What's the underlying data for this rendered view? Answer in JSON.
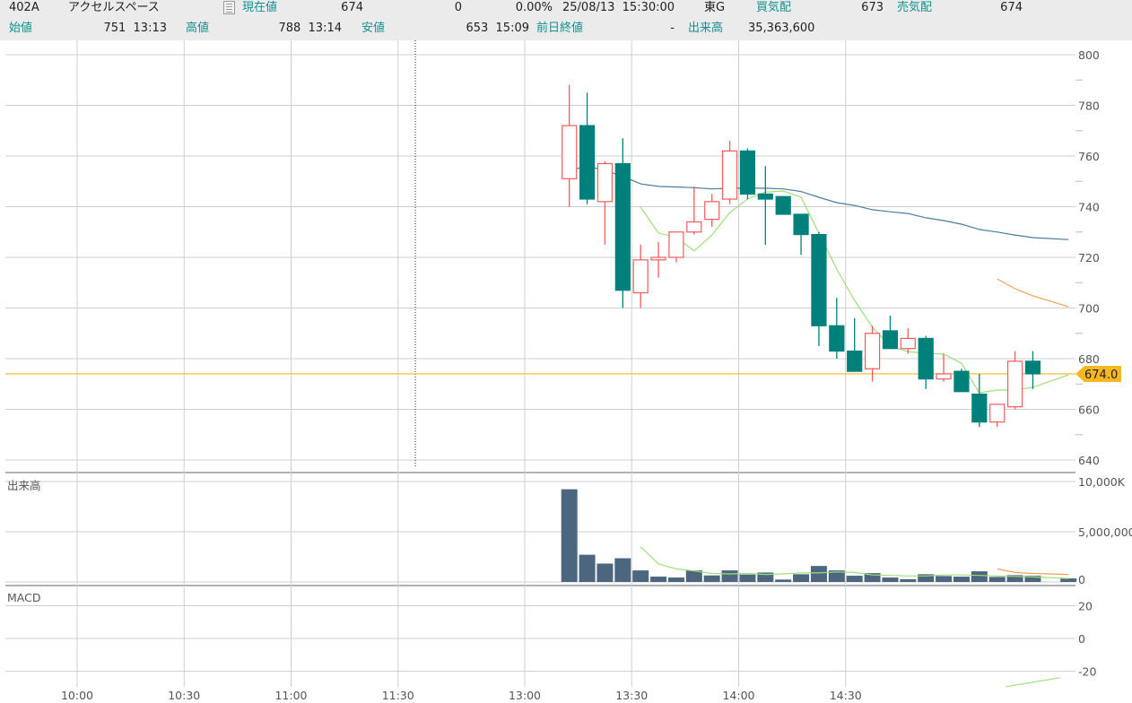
{
  "header": {
    "code": "402A",
    "name": "アクセルスペース",
    "memo_icon": "document-icon",
    "current_label": "現在値",
    "current_value": "674",
    "change": "0",
    "change_pct": "0.00%",
    "datetime": "25/08/13  15:30:00",
    "market": "東G",
    "bid_label": "買気配",
    "bid_value": "673",
    "ask_label": "売気配",
    "ask_value": "674",
    "open_label": "始値",
    "open_value": "751  13:13",
    "high_label": "高値",
    "high_value": "788  13:14",
    "low_label": "安値",
    "low_value": "653  15:09",
    "prev_close_label": "前日終値",
    "prev_close_value": "-",
    "volume_label": "出来高",
    "volume_value": "35,363,600"
  },
  "panels": {
    "volume_title": "出来高",
    "macd_title": "MACD"
  },
  "colors": {
    "up": "#f25c5c",
    "down": "#00807a",
    "ma_short": "#9ee07a",
    "ma_long": "#4a7fa0",
    "ma_orange": "#f5a050",
    "volume": "#4d6680",
    "last_price": "#f5b820"
  },
  "chart_data": {
    "type": "candlestick",
    "interval_minutes": 5,
    "x_ticks": [
      "10:00",
      "10:30",
      "11:00",
      "11:30",
      "13:00",
      "13:30",
      "14:00",
      "14:30"
    ],
    "price_axis": {
      "ticks": [
        "800",
        "780",
        "760",
        "740",
        "720",
        "700",
        "680",
        "660",
        "640"
      ],
      "range": [
        640,
        800
      ]
    },
    "last_price": 674.0,
    "last_price_label": "674.0",
    "candles": [
      {
        "t": "13:10",
        "o": 751,
        "h": 788,
        "l": 740,
        "c": 772
      },
      {
        "t": "13:15",
        "o": 772,
        "h": 785,
        "l": 741,
        "c": 743
      },
      {
        "t": "13:20",
        "o": 742,
        "h": 758,
        "l": 725,
        "c": 757
      },
      {
        "t": "13:25",
        "o": 757,
        "h": 767,
        "l": 700,
        "c": 707
      },
      {
        "t": "13:30",
        "o": 706,
        "h": 725,
        "l": 700,
        "c": 719
      },
      {
        "t": "13:35",
        "o": 719,
        "h": 726,
        "l": 712,
        "c": 720
      },
      {
        "t": "13:40",
        "o": 720,
        "h": 730,
        "l": 718,
        "c": 730
      },
      {
        "t": "13:45",
        "o": 730,
        "h": 748,
        "l": 729,
        "c": 734
      },
      {
        "t": "13:50",
        "o": 735,
        "h": 745,
        "l": 732,
        "c": 742
      },
      {
        "t": "13:55",
        "o": 743,
        "h": 766,
        "l": 741,
        "c": 762
      },
      {
        "t": "14:00",
        "o": 762,
        "h": 763,
        "l": 743,
        "c": 745
      },
      {
        "t": "14:05",
        "o": 745,
        "h": 756,
        "l": 725,
        "c": 743
      },
      {
        "t": "14:10",
        "o": 744,
        "h": 744,
        "l": 737,
        "c": 737
      },
      {
        "t": "14:15",
        "o": 737,
        "h": 737,
        "l": 721,
        "c": 729
      },
      {
        "t": "14:20",
        "o": 729,
        "h": 730,
        "l": 685,
        "c": 693
      },
      {
        "t": "14:25",
        "o": 693,
        "h": 704,
        "l": 680,
        "c": 683
      },
      {
        "t": "14:30",
        "o": 683,
        "h": 696,
        "l": 675,
        "c": 675
      },
      {
        "t": "14:35",
        "o": 676,
        "h": 693,
        "l": 671,
        "c": 690
      },
      {
        "t": "14:40",
        "o": 691,
        "h": 697,
        "l": 684,
        "c": 684
      },
      {
        "t": "14:45",
        "o": 684,
        "h": 692,
        "l": 682,
        "c": 688
      },
      {
        "t": "14:50",
        "o": 688,
        "h": 689,
        "l": 668,
        "c": 672
      },
      {
        "t": "14:55",
        "o": 672,
        "h": 682,
        "l": 671,
        "c": 674
      },
      {
        "t": "15:00",
        "o": 675,
        "h": 676,
        "l": 667,
        "c": 667
      },
      {
        "t": "15:05",
        "o": 666,
        "h": 674,
        "l": 653,
        "c": 655
      },
      {
        "t": "15:10",
        "o": 655,
        "h": 662,
        "l": 653,
        "c": 662
      },
      {
        "t": "15:15",
        "o": 661,
        "h": 683,
        "l": 660,
        "c": 679
      },
      {
        "t": "15:20",
        "o": 679,
        "h": 683,
        "l": 668,
        "c": 674
      }
    ],
    "ma_long": [
      754.3,
      756,
      754.3,
      752,
      749,
      748,
      747.8,
      747.5,
      747,
      747.3,
      747.3,
      747.3,
      747,
      746,
      743.7,
      741.6,
      740.5,
      738.8,
      738,
      737.3,
      735.6,
      734.5,
      733.1,
      731,
      730,
      728.8,
      727.8,
      727
    ],
    "ma_short": [
      null,
      null,
      null,
      null,
      739.8,
      729.6,
      728,
      722.5,
      728.8,
      737.7,
      743,
      745.8,
      746.2,
      743.7,
      729.6,
      715.4,
      703,
      692.4,
      685,
      682.8,
      682.1,
      681.8,
      678.2,
      666.5,
      667.6,
      667.6,
      668.7,
      673.6
    ],
    "ma_orange": [
      null,
      null,
      null,
      null,
      null,
      null,
      null,
      null,
      null,
      null,
      null,
      null,
      null,
      null,
      null,
      null,
      null,
      null,
      null,
      null,
      null,
      null,
      null,
      null,
      711.5,
      707.6,
      704.8,
      700.5
    ],
    "ma_times": [
      "13:10",
      "13:15",
      "13:20",
      "13:25",
      "13:30",
      "13:35",
      "13:40",
      "13:45",
      "13:50",
      "13:55",
      "14:00",
      "14:05",
      "14:10",
      "14:15",
      "14:20",
      "14:25",
      "14:30",
      "14:35",
      "14:40",
      "14:45",
      "14:50",
      "14:55",
      "15:00",
      "15:05",
      "15:10",
      "15:15",
      "15:20",
      "15:30"
    ],
    "volume_axis": {
      "ticks": [
        "10,000K",
        "5,000,000",
        "0"
      ],
      "range_millions": [
        0,
        10
      ]
    },
    "volume_millions": [
      9.23,
      2.71,
      1.83,
      2.36,
      1.15,
      0.53,
      0.44,
      1.15,
      0.65,
      1.15,
      0.74,
      0.94,
      0.24,
      0.77,
      1.59,
      1.15,
      0.62,
      0.88,
      0.44,
      0.27,
      0.77,
      0.59,
      0.53,
      1.06,
      0.5,
      0.68,
      0.62,
      0.35
    ],
    "volume_ma_short": [
      null,
      null,
      null,
      null,
      3.5,
      1.8,
      1.3,
      1.1,
      0.85,
      0.8,
      0.85,
      0.75,
      0.8,
      0.9,
      0.9,
      1.0,
      0.95,
      0.7,
      0.65,
      0.6,
      0.6,
      0.7,
      0.7,
      0.65,
      0.6,
      0.55,
      0.5,
      0.35
    ],
    "volume_ma_orange": [
      null,
      null,
      null,
      null,
      null,
      null,
      null,
      null,
      null,
      null,
      null,
      null,
      null,
      null,
      null,
      null,
      null,
      null,
      null,
      null,
      null,
      null,
      null,
      null,
      1.3,
      0.95,
      0.85,
      0.75
    ],
    "macd_axis": {
      "ticks": [
        "20",
        "0",
        "-20"
      ],
      "range": [
        -32,
        32
      ]
    },
    "macd_line": [
      {
        "t": "15:15",
        "v": -29.5
      },
      {
        "t": "15:30",
        "v": -24
      }
    ]
  }
}
